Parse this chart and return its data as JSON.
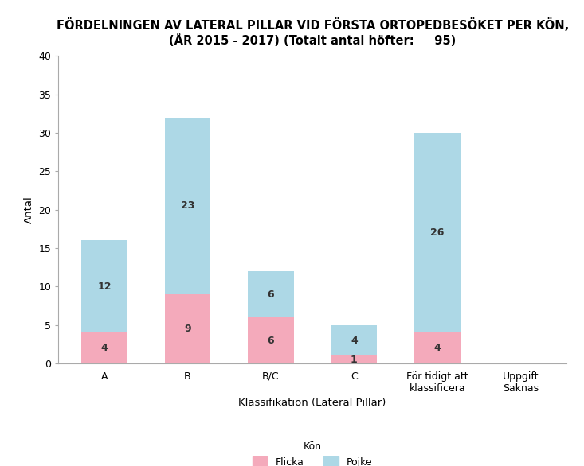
{
  "title_line1": "FÖRDELNINGEN AV LATERAL PILLAR VID FÖRSTA ORTOPEDBESÖKET PER KÖN,",
  "title_line2": "(ÅR 2015 - 2017) (Totalt antal höfter:     95)",
  "categories": [
    "A",
    "B",
    "B/C",
    "C",
    "För tidigt att\nklassificera",
    "Uppgift\nSaknas"
  ],
  "flicka_values": [
    4,
    9,
    6,
    1,
    4,
    0
  ],
  "pojke_values": [
    12,
    23,
    6,
    4,
    26,
    0
  ],
  "flicka_color": "#F4AABB",
  "pojke_color": "#ADD8E6",
  "xlabel": "Klassifikation (Lateral Pillar)",
  "ylabel": "Antal",
  "legend_title": "Kön",
  "legend_labels": [
    "Flicka",
    "Pojke"
  ],
  "ylim": [
    0,
    40
  ],
  "yticks": [
    0,
    5,
    10,
    15,
    20,
    25,
    30,
    35,
    40
  ],
  "bar_width": 0.55,
  "background_color": "#ffffff",
  "title_fontsize": 10.5,
  "axis_fontsize": 9.5,
  "tick_fontsize": 9,
  "label_fontsize": 9
}
